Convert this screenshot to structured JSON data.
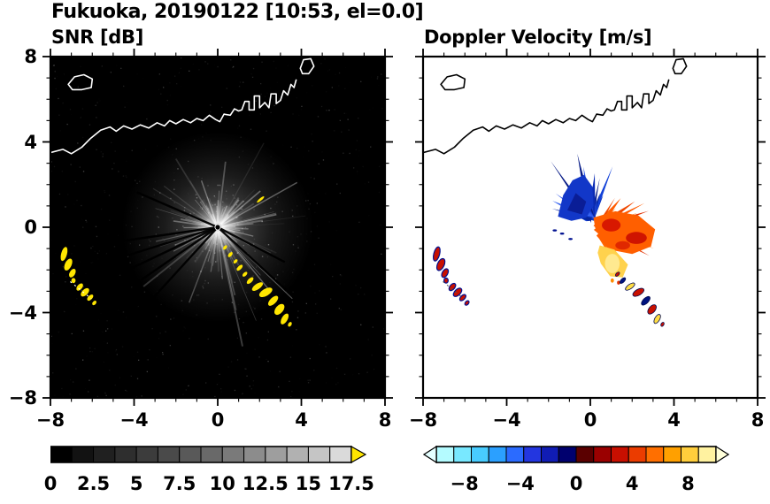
{
  "header": {
    "title": "Fukuoka, 20190122 [10:53, el=0.0]"
  },
  "panels": [
    {
      "id": "snr",
      "title": "SNR [dB]"
    },
    {
      "id": "velocity",
      "title": "Doppler Velocity [m/s]"
    }
  ],
  "axes": {
    "xtick_labels": [
      "−8",
      "−4",
      "0",
      "4",
      "8"
    ],
    "xtick_values": [
      -8,
      -4,
      0,
      4,
      8
    ],
    "ytick_labels": [
      "8",
      "4",
      "0",
      "−4",
      "−8"
    ],
    "ytick_values": [
      8,
      4,
      0,
      -4,
      -8
    ]
  },
  "colorbars": {
    "snr": {
      "tick_labels": [
        "0",
        "2.5",
        "5",
        "7.5",
        "10",
        "12.5",
        "15",
        "17.5"
      ],
      "tick_values": [
        0,
        2.5,
        5,
        7.5,
        10,
        12.5,
        15,
        17.5
      ],
      "segment_colors": [
        "#000000",
        "#121212",
        "#202020",
        "#2e2e2e",
        "#3c3c3c",
        "#4a4a4a",
        "#595959",
        "#696969",
        "#7a7a7a",
        "#8c8c8c",
        "#9e9e9e",
        "#b1b1b1",
        "#c5c5c5",
        "#dadada"
      ],
      "arrow_color": "#ffe600"
    },
    "velocity": {
      "tick_labels": [
        "−8",
        "−4",
        "0",
        "4",
        "8"
      ],
      "tick_values": [
        -8,
        -4,
        0,
        4,
        8
      ],
      "range": [
        -10,
        10
      ],
      "segment_colors": [
        "#b4fbff",
        "#78e8ff",
        "#48ccff",
        "#2ba0ff",
        "#2b6bff",
        "#2336e0",
        "#101cb4",
        "#00006e",
        "#5a0000",
        "#9a0000",
        "#c80f00",
        "#eb3c00",
        "#ff6f00",
        "#ffa000",
        "#ffce3c",
        "#fff2a0"
      ],
      "left_arrow_color": "#e4ffff",
      "right_arrow_color": "#ffffda"
    }
  },
  "chart_data": [
    {
      "type": "heatmap",
      "title": "SNR [dB]",
      "xlim": [
        -8,
        8
      ],
      "ylim": [
        -8,
        8
      ],
      "xticks": [
        -8,
        -4,
        0,
        4,
        8
      ],
      "yticks": [
        -8,
        -4,
        0,
        4,
        8
      ],
      "background": "#000000",
      "grid": false,
      "colorbar": {
        "range": [
          0,
          17.5
        ],
        "tick_values": [
          0,
          2.5,
          5,
          7.5,
          10,
          12.5,
          15,
          17.5
        ],
        "palette": "black-to-white grayscale",
        "over_arrow": "yellow"
      },
      "features": [
        "radial gray SNR streak fan centered at radar origin (0,0), brightest within ~1",
        "yellow high-SNR echo arc from about (0.3,-1.0) to (3.4,-4.6)",
        "yellow echo cluster from about (-7.4,-1.2) to (-5.9,-3.6)",
        "small yellow echo near (2.0,1.3)",
        "white coastline and harbor outline across the top, islands near (-6.6,6.8) and (4.3,7.5)",
        "thin black shadow rays toward the southwest and southeast"
      ]
    },
    {
      "type": "heatmap",
      "title": "Doppler Velocity [m/s]",
      "xlim": [
        -8,
        8
      ],
      "ylim": [
        -8,
        8
      ],
      "xticks": [
        -8,
        -4,
        0,
        4,
        8
      ],
      "yticks": [
        -8,
        -4,
        0,
        4,
        8
      ],
      "background": "#ffffff",
      "grid": false,
      "colorbar": {
        "range": [
          -10,
          10
        ],
        "tick_values": [
          -8,
          -4,
          0,
          4,
          8
        ],
        "palette": "cyan-blue to red-orange-yellow diverging"
      },
      "features": [
        "blue negative-velocity spiky fan north/northwest of origin reaching about (-1.5,3)",
        "red-orange positive-velocity fan east of origin reaching about (3.3,-1)",
        "pale yellow low positive velocities south-southeast of origin near (1,-2)",
        "mixed red/blue/yellow echo chain from about (1.3,-2.3) to (3.4,-4.6)",
        "red echoes with dark blue fringes in cluster from (-7.4,-1.2) to (-5.9,-3.6)",
        "black coastline and harbor outline across the top"
      ]
    }
  ]
}
